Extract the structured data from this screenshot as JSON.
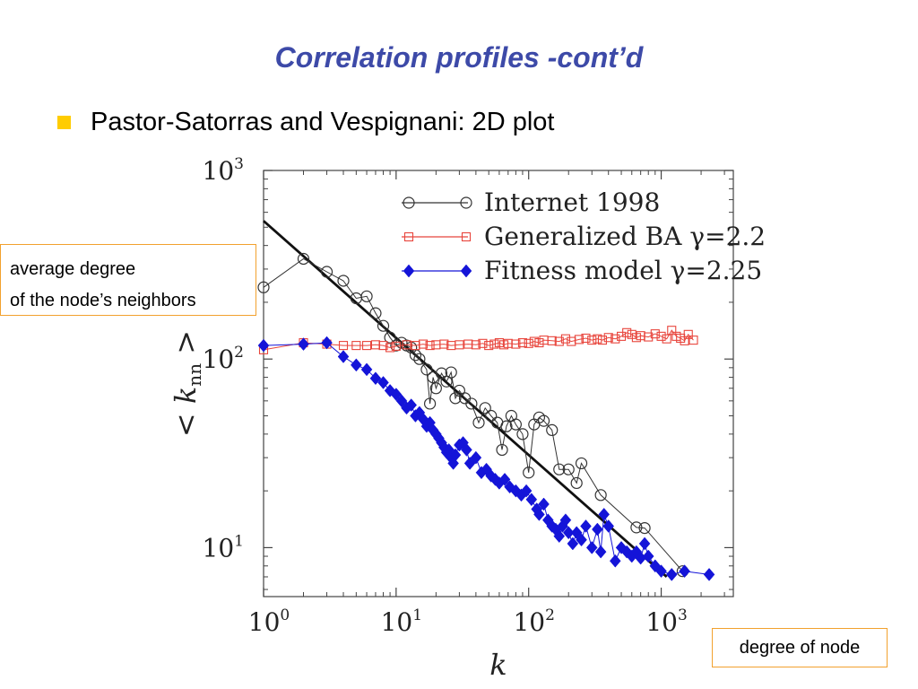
{
  "slide": {
    "title": "Correlation profiles -cont’d",
    "bullet": "Pastor-Satorras and Vespignani: 2D plot",
    "callout_left_line1": "average degree",
    "callout_left_line2": "of the node’s neighbors",
    "callout_right": "degree of node"
  },
  "chart_data": {
    "type": "scatter",
    "scale": {
      "x": "log",
      "y": "log"
    },
    "xlim": [
      1,
      3500
    ],
    "ylim": [
      5.5,
      1000
    ],
    "xlabel": "k",
    "ylabel": "< k",
    "ylabel_sub": "nn",
    "ylabel_close": ">",
    "xticks": [
      {
        "value": 1,
        "base": "10",
        "exp": "0"
      },
      {
        "value": 10,
        "base": "10",
        "exp": "1"
      },
      {
        "value": 100,
        "base": "10",
        "exp": "2"
      },
      {
        "value": 1000,
        "base": "10",
        "exp": "3"
      }
    ],
    "yticks": [
      {
        "value": 10,
        "base": "10",
        "exp": "1"
      },
      {
        "value": 100,
        "base": "10",
        "exp": "2"
      },
      {
        "value": 1000,
        "base": "10",
        "exp": "3"
      }
    ],
    "legend_position": "top-right",
    "colors": {
      "internet": "#333333",
      "ba": "#e8453c",
      "fitness": "#1414d8",
      "fit": "#111111"
    },
    "series": [
      {
        "name": "Internet 1998",
        "marker": "circle",
        "points": [
          [
            1,
            240
          ],
          [
            2,
            340
          ],
          [
            3,
            290
          ],
          [
            4,
            260
          ],
          [
            5,
            210
          ],
          [
            6,
            215
          ],
          [
            7,
            175
          ],
          [
            8,
            150
          ],
          [
            9,
            130
          ],
          [
            10,
            118
          ],
          [
            11,
            122
          ],
          [
            12,
            118
          ],
          [
            13,
            115
          ],
          [
            14,
            105
          ],
          [
            15,
            100
          ],
          [
            17,
            88
          ],
          [
            18,
            58
          ],
          [
            19,
            80
          ],
          [
            20,
            70
          ],
          [
            22,
            84
          ],
          [
            24,
            76
          ],
          [
            26,
            85
          ],
          [
            28,
            62
          ],
          [
            30,
            68
          ],
          [
            33,
            62
          ],
          [
            37,
            58
          ],
          [
            42,
            46
          ],
          [
            47,
            55
          ],
          [
            52,
            50
          ],
          [
            58,
            46
          ],
          [
            63,
            33
          ],
          [
            68,
            44
          ],
          [
            74,
            50
          ],
          [
            80,
            45
          ],
          [
            90,
            40
          ],
          [
            100,
            25
          ],
          [
            110,
            45
          ],
          [
            120,
            49
          ],
          [
            130,
            47
          ],
          [
            150,
            42
          ],
          [
            170,
            26
          ],
          [
            200,
            26
          ],
          [
            230,
            22
          ],
          [
            250,
            28
          ],
          [
            350,
            19
          ],
          [
            650,
            12.8
          ],
          [
            750,
            12.7
          ],
          [
            1450,
            7.5
          ]
        ]
      },
      {
        "name": "Generalized BA",
        "name_gamma": "γ=2.2",
        "marker": "square",
        "points": [
          [
            1,
            112
          ],
          [
            2,
            122
          ],
          [
            3,
            120
          ],
          [
            4,
            118
          ],
          [
            5,
            118
          ],
          [
            6,
            118
          ],
          [
            7,
            119
          ],
          [
            8,
            118
          ],
          [
            9,
            115
          ],
          [
            10,
            117
          ],
          [
            12,
            119
          ],
          [
            14,
            118
          ],
          [
            16,
            120
          ],
          [
            18,
            118
          ],
          [
            20,
            119
          ],
          [
            23,
            120
          ],
          [
            26,
            118
          ],
          [
            30,
            119
          ],
          [
            35,
            120
          ],
          [
            40,
            119
          ],
          [
            45,
            121
          ],
          [
            50,
            118
          ],
          [
            55,
            120
          ],
          [
            60,
            122
          ],
          [
            65,
            119
          ],
          [
            70,
            121
          ],
          [
            80,
            120
          ],
          [
            90,
            122
          ],
          [
            100,
            121
          ],
          [
            110,
            124
          ],
          [
            120,
            122
          ],
          [
            130,
            126
          ],
          [
            150,
            125
          ],
          [
            170,
            124
          ],
          [
            190,
            128
          ],
          [
            210,
            124
          ],
          [
            240,
            127
          ],
          [
            270,
            129
          ],
          [
            300,
            126
          ],
          [
            330,
            128
          ],
          [
            360,
            126
          ],
          [
            400,
            130
          ],
          [
            450,
            128
          ],
          [
            500,
            132
          ],
          [
            550,
            138
          ],
          [
            600,
            135
          ],
          [
            650,
            130
          ],
          [
            700,
            133
          ],
          [
            800,
            131
          ],
          [
            900,
            136
          ],
          [
            1000,
            132
          ],
          [
            1100,
            128
          ],
          [
            1200,
            142
          ],
          [
            1300,
            132
          ],
          [
            1400,
            129
          ],
          [
            1500,
            125
          ],
          [
            1600,
            135
          ],
          [
            1750,
            126
          ]
        ]
      },
      {
        "name": "Fitness model",
        "name_gamma": "γ=2.25",
        "marker": "diamond",
        "points": [
          [
            1,
            118
          ],
          [
            2,
            120
          ],
          [
            3,
            122
          ],
          [
            4,
            103
          ],
          [
            5,
            93
          ],
          [
            6,
            88
          ],
          [
            7,
            79
          ],
          [
            8,
            75
          ],
          [
            9,
            68
          ],
          [
            10,
            65
          ],
          [
            11,
            60
          ],
          [
            12,
            55
          ],
          [
            13,
            57
          ],
          [
            14,
            50
          ],
          [
            15,
            52
          ],
          [
            16,
            48
          ],
          [
            17,
            44
          ],
          [
            18,
            46
          ],
          [
            19,
            42
          ],
          [
            20,
            40
          ],
          [
            21,
            38
          ],
          [
            22,
            36
          ],
          [
            23,
            34
          ],
          [
            24,
            32
          ],
          [
            25,
            33
          ],
          [
            26,
            30
          ],
          [
            27,
            28
          ],
          [
            28,
            31
          ],
          [
            30,
            35
          ],
          [
            32,
            36
          ],
          [
            34,
            33
          ],
          [
            36,
            28
          ],
          [
            40,
            30
          ],
          [
            44,
            25
          ],
          [
            48,
            26
          ],
          [
            52,
            24
          ],
          [
            56,
            23
          ],
          [
            60,
            22
          ],
          [
            66,
            23
          ],
          [
            72,
            21
          ],
          [
            80,
            20
          ],
          [
            88,
            19
          ],
          [
            96,
            20
          ],
          [
            105,
            18
          ],
          [
            115,
            16
          ],
          [
            120,
            15
          ],
          [
            130,
            17
          ],
          [
            140,
            14
          ],
          [
            150,
            13
          ],
          [
            160,
            12.5
          ],
          [
            170,
            11.5
          ],
          [
            180,
            13
          ],
          [
            190,
            14
          ],
          [
            200,
            12
          ],
          [
            215,
            10.5
          ],
          [
            230,
            12
          ],
          [
            250,
            11
          ],
          [
            270,
            13
          ],
          [
            300,
            10
          ],
          [
            330,
            12.5
          ],
          [
            350,
            9.5
          ],
          [
            370,
            15
          ],
          [
            400,
            13
          ],
          [
            450,
            8.5
          ],
          [
            500,
            10
          ],
          [
            550,
            9.5
          ],
          [
            600,
            9
          ],
          [
            650,
            9.5
          ],
          [
            700,
            8.8
          ],
          [
            750,
            10.5
          ],
          [
            800,
            9
          ],
          [
            900,
            8
          ],
          [
            1000,
            7.5
          ],
          [
            1200,
            7.2
          ],
          [
            1500,
            7.5
          ],
          [
            2300,
            7.2
          ]
        ]
      }
    ],
    "fit_line": {
      "name": "power-law fit",
      "from": [
        1,
        540
      ],
      "to": [
        1100,
        7.0
      ]
    }
  }
}
